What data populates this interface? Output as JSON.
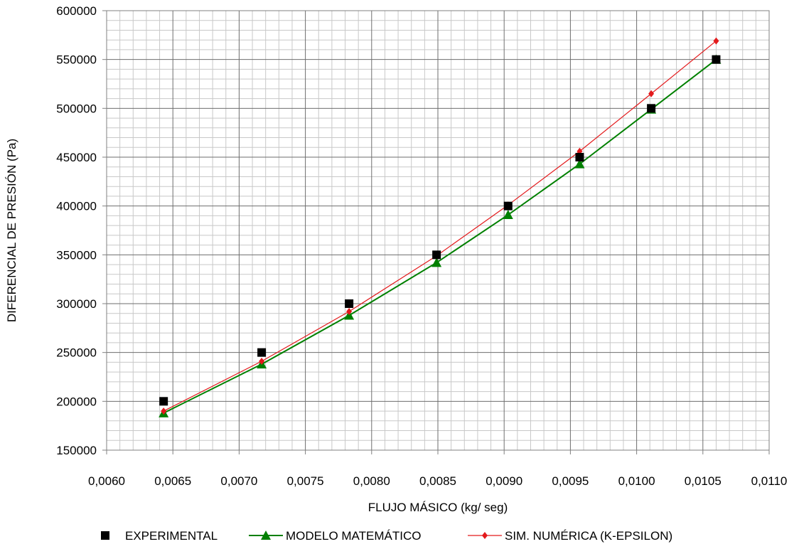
{
  "chart_data": {
    "type": "line",
    "title": "",
    "xlabel": "FLUJO MÁSICO (kg/ seg)",
    "ylabel": "DIFERENCIAL DE PRESIÓN (Pa)",
    "xlim": [
      0.006,
      0.011
    ],
    "ylim": [
      150000,
      600000
    ],
    "x_ticks": [
      "0,0060",
      "0,0065",
      "0,0070",
      "0,0075",
      "0,0080",
      "0,0085",
      "0,0090",
      "0,0095",
      "0,0100",
      "0,0105",
      "0,0110"
    ],
    "y_ticks": [
      "150000",
      "200000",
      "250000",
      "300000",
      "350000",
      "400000",
      "450000",
      "500000",
      "550000",
      "600000"
    ],
    "grid": true,
    "legend_position": "bottom",
    "series": [
      {
        "name": "EXPERIMENTAL",
        "marker": "square",
        "line": false,
        "color": "#000000",
        "x": [
          0.00643,
          0.00717,
          0.00783,
          0.00849,
          0.00903,
          0.00957,
          0.01011,
          0.0106
        ],
        "y": [
          200000,
          250000,
          300000,
          350000,
          400000,
          450000,
          500000,
          550000
        ]
      },
      {
        "name": "MODELO MATEMÁTICO",
        "marker": "triangle",
        "line": true,
        "color": "#008000",
        "x": [
          0.00643,
          0.00717,
          0.00783,
          0.00849,
          0.00903,
          0.00957,
          0.01011,
          0.0106
        ],
        "y": [
          188000,
          238000,
          288000,
          342000,
          391000,
          443000,
          499000,
          550000
        ]
      },
      {
        "name": "SIM. NUMÉRICA (K-EPSILON)",
        "marker": "diamond",
        "line": true,
        "color": "#e31a1c",
        "x": [
          0.00643,
          0.00717,
          0.00783,
          0.00849,
          0.00903,
          0.00957,
          0.01011,
          0.0106
        ],
        "y": [
          190000,
          241000,
          292000,
          349000,
          401000,
          456000,
          515000,
          569000
        ]
      }
    ]
  }
}
